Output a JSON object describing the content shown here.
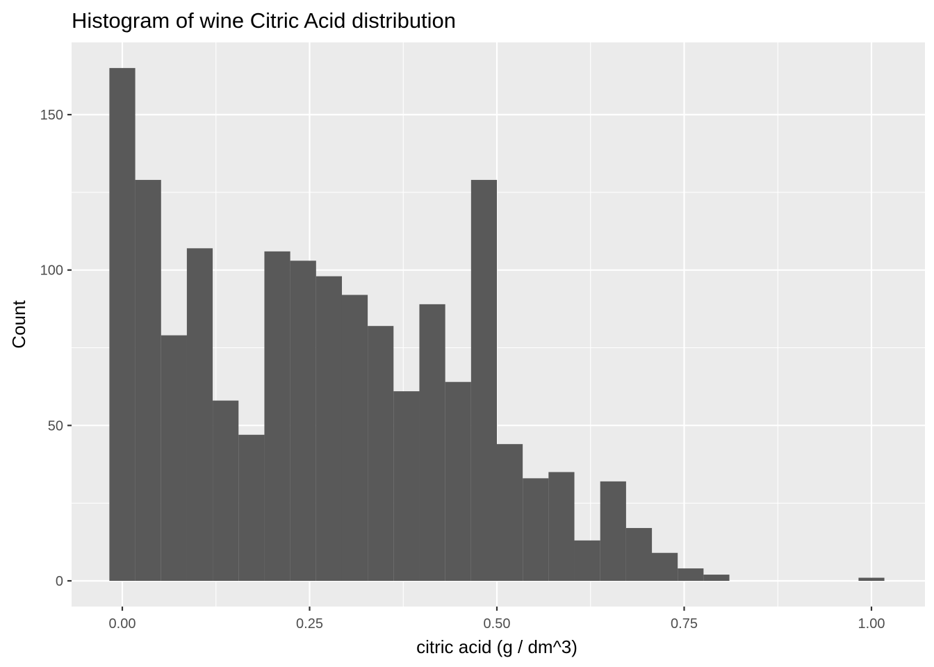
{
  "chart_data": {
    "type": "bar",
    "title": "Histogram of wine Citric Acid distribution",
    "xlabel": "citric acid (g / dm^3)",
    "ylabel": "Count",
    "xlim": [
      -0.0167,
      1.0167
    ],
    "ylim": [
      0,
      165
    ],
    "x_ticks": [
      {
        "value": 0.0,
        "label": "0.00"
      },
      {
        "value": 0.25,
        "label": "0.25"
      },
      {
        "value": 0.5,
        "label": "0.50"
      },
      {
        "value": 0.75,
        "label": "0.75"
      },
      {
        "value": 1.0,
        "label": "1.00"
      }
    ],
    "y_ticks": [
      {
        "value": 0,
        "label": "0"
      },
      {
        "value": 50,
        "label": "50"
      },
      {
        "value": 100,
        "label": "100"
      },
      {
        "value": 150,
        "label": "150"
      }
    ],
    "bin_width": 0.0345,
    "bin_centers": [
      0.0,
      0.0345,
      0.069,
      0.1034,
      0.1379,
      0.1724,
      0.2069,
      0.2414,
      0.2759,
      0.3103,
      0.3448,
      0.3793,
      0.4138,
      0.4483,
      0.4828,
      0.5172,
      0.5517,
      0.5862,
      0.6207,
      0.6552,
      0.6897,
      0.7241,
      0.7586,
      0.7931,
      0.8276,
      0.8621,
      0.8966,
      0.931,
      0.9655,
      1.0
    ],
    "values": [
      165,
      129,
      79,
      107,
      58,
      47,
      106,
      103,
      98,
      92,
      82,
      61,
      89,
      64,
      129,
      44,
      33,
      35,
      13,
      32,
      17,
      9,
      4,
      2,
      0,
      0,
      0,
      0,
      0,
      1
    ],
    "bar_color": "#595959",
    "panel_background": "#ebebeb",
    "grid": true,
    "grid_color": "#ffffff"
  }
}
